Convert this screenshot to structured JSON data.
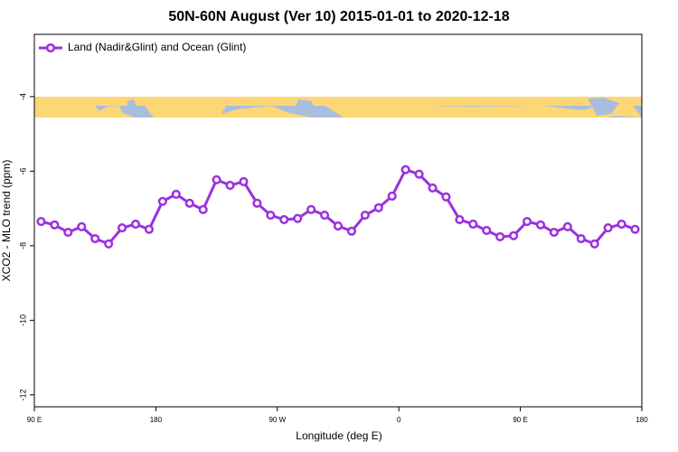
{
  "chart_data": {
    "type": "line",
    "title": "50N-60N August (Ver 10)   2015-01-01 to 2020-12-18",
    "x_label": "Longitude (deg E)",
    "y_label": "XCO2 - MLO trend (ppm)",
    "legend": "top-left",
    "x": [
      95,
      105,
      115,
      125,
      135,
      145,
      155,
      165,
      175,
      185,
      195,
      205,
      215,
      225,
      235,
      245,
      255,
      265,
      275,
      285,
      295,
      305,
      315,
      325,
      335,
      345,
      355,
      365,
      375,
      385,
      395,
      405,
      415,
      425,
      435,
      445,
      455,
      465,
      475,
      485,
      495,
      505,
      515,
      525,
      535
    ],
    "series": [
      {
        "name": "Land (Nadir&Glint) and Ocean (Glint)",
        "color": "#9b30e0",
        "values": [
          -7.35,
          -7.44,
          -7.64,
          -7.49,
          -7.81,
          -7.95,
          -7.52,
          -7.42,
          -7.56,
          -6.81,
          -6.62,
          -6.86,
          -7.03,
          -6.23,
          -6.38,
          -6.28,
          -6.86,
          -7.18,
          -7.3,
          -7.27,
          -7.03,
          -7.18,
          -7.47,
          -7.61,
          -7.18,
          -6.98,
          -6.67,
          -5.96,
          -6.08,
          -6.45,
          -6.69,
          -7.3,
          -7.42,
          -7.59,
          -7.76,
          -7.73,
          -7.35,
          -7.44,
          -7.64,
          -7.49,
          -7.81,
          -7.95,
          -7.52,
          -7.42,
          -7.56
        ]
      }
    ],
    "xlim": [
      90,
      540
    ],
    "xticks": [
      {
        "value": 90,
        "label": "90 E"
      },
      {
        "value": 180,
        "label": "180"
      },
      {
        "value": 270,
        "label": "90 W"
      },
      {
        "value": 360,
        "label": "0"
      },
      {
        "value": 450,
        "label": "90 E"
      },
      {
        "value": 540,
        "label": "180"
      }
    ],
    "ylim": [
      -12.32,
      -2.33
    ],
    "yticks": [
      -4,
      -6,
      -8,
      -10,
      -12
    ]
  }
}
